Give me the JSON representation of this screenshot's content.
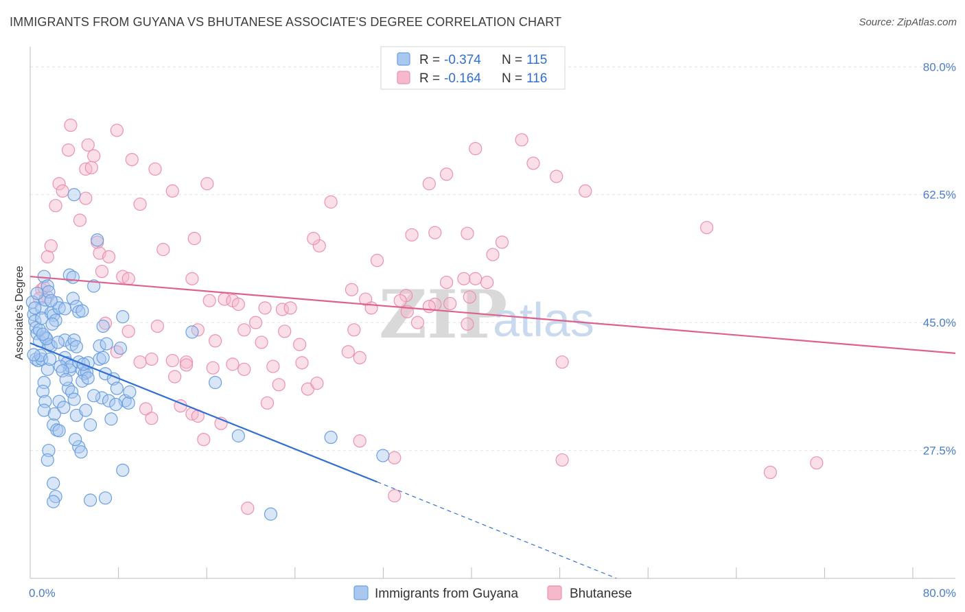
{
  "title": "IMMIGRANTS FROM GUYANA VS BHUTANESE ASSOCIATE'S DEGREE CORRELATION CHART",
  "source": "Source: ZipAtlas.com",
  "watermark": {
    "zip": "ZIP",
    "atlas": "atlas"
  },
  "colors": {
    "blue_fill": "#a8c8f0",
    "blue_stroke": "#6a9fe0",
    "blue_line": "#2f6fd1",
    "pink_fill": "#f6b8cb",
    "pink_stroke": "#ec90ae",
    "pink_line": "#e0608c",
    "grid": "#e3e3e3",
    "axis": "#bbbbbb",
    "tick_text": "#4a7cc7"
  },
  "legend": {
    "items": [
      {
        "r_label": "R =",
        "r_value": "-0.374",
        "n_label": "N =",
        "n_value": "115"
      },
      {
        "r_label": "R =",
        "r_value": "-0.164",
        "n_label": "N =",
        "n_value": "116"
      }
    ]
  },
  "chart_data": {
    "type": "scatter",
    "ylabel": "Associate's Degree",
    "x_tick_labels": [
      "0.0%",
      "80.0%"
    ],
    "y_tick_labels": [
      "27.5%",
      "45.0%",
      "62.5%",
      "80.0%"
    ],
    "y_ticks": [
      27.5,
      45.0,
      62.5,
      80.0
    ],
    "xlim": [
      0,
      80
    ],
    "ylim": [
      10,
      82
    ],
    "grid": true,
    "legend_position": "top-center",
    "series": [
      {
        "name": "Immigrants from Guyana",
        "color": "blue",
        "trend": {
          "x0": 0,
          "y0": 42.2,
          "x1": 30,
          "y1": 23.2,
          "dash_to_x": 50.7,
          "dash_to_y": 10
        },
        "points": [
          [
            0.2,
            47.8
          ],
          [
            0.3,
            46.1
          ],
          [
            0.4,
            45.2
          ],
          [
            0.5,
            44.3
          ],
          [
            0.6,
            43.5
          ],
          [
            0.5,
            40.0
          ],
          [
            0.7,
            39.8
          ],
          [
            0.8,
            42.5
          ],
          [
            1.0,
            47.0
          ],
          [
            1.0,
            40.0
          ],
          [
            1.2,
            51.3
          ],
          [
            1.3,
            48.1
          ],
          [
            1.5,
            50.0
          ],
          [
            1.6,
            49.2
          ],
          [
            1.3,
            43.0
          ],
          [
            1.6,
            42.0
          ],
          [
            1.8,
            41.8
          ],
          [
            1.8,
            46.3
          ],
          [
            2.0,
            46.0
          ],
          [
            2.2,
            45.3
          ],
          [
            2.3,
            47.7
          ],
          [
            2.5,
            47.0
          ],
          [
            1.2,
            36.8
          ],
          [
            1.1,
            35.6
          ],
          [
            1.3,
            34.2
          ],
          [
            1.2,
            33.0
          ],
          [
            1.5,
            38.6
          ],
          [
            2.0,
            31.0
          ],
          [
            2.3,
            30.3
          ],
          [
            2.1,
            32.5
          ],
          [
            2.5,
            34.2
          ],
          [
            3.0,
            42.6
          ],
          [
            3.0,
            40.2
          ],
          [
            3.2,
            39.5
          ],
          [
            3.4,
            38.5
          ],
          [
            3.5,
            39.0
          ],
          [
            3.6,
            42.0
          ],
          [
            3.8,
            42.6
          ],
          [
            4.0,
            41.7
          ],
          [
            3.3,
            36.0
          ],
          [
            3.6,
            35.5
          ],
          [
            3.8,
            34.5
          ],
          [
            4.0,
            32.3
          ],
          [
            4.2,
            39.6
          ],
          [
            4.5,
            38.5
          ],
          [
            4.7,
            38.0
          ],
          [
            4.9,
            38.2
          ],
          [
            4.5,
            37.0
          ],
          [
            5.0,
            37.4
          ],
          [
            3.7,
            48.3
          ],
          [
            4.0,
            47.2
          ],
          [
            4.2,
            46.5
          ],
          [
            4.5,
            46.6
          ],
          [
            3.4,
            51.5
          ],
          [
            3.7,
            51.2
          ],
          [
            5.5,
            50.0
          ],
          [
            5.8,
            56.3
          ],
          [
            3.8,
            62.5
          ],
          [
            4.2,
            28.0
          ],
          [
            4.4,
            27.3
          ],
          [
            2.5,
            30.2
          ],
          [
            1.6,
            27.5
          ],
          [
            1.5,
            26.2
          ],
          [
            2.0,
            23.0
          ],
          [
            2.2,
            21.2
          ],
          [
            2.0,
            20.5
          ],
          [
            5.2,
            20.7
          ],
          [
            6.5,
            21.0
          ],
          [
            8.0,
            24.8
          ],
          [
            6.0,
            40.0
          ],
          [
            6.5,
            38.0
          ],
          [
            6.2,
            34.7
          ],
          [
            6.8,
            34.3
          ],
          [
            7.0,
            31.8
          ],
          [
            7.2,
            37.3
          ],
          [
            7.5,
            36.0
          ],
          [
            7.8,
            41.5
          ],
          [
            8.0,
            45.8
          ],
          [
            8.2,
            34.3
          ],
          [
            8.5,
            34.0
          ],
          [
            8.6,
            35.5
          ],
          [
            6.3,
            40.2
          ],
          [
            6.0,
            41.8
          ],
          [
            6.3,
            44.5
          ],
          [
            5.2,
            31.0
          ],
          [
            4.8,
            33.0
          ],
          [
            5.5,
            35.0
          ],
          [
            14.0,
            43.7
          ],
          [
            16.0,
            36.8
          ],
          [
            18.0,
            29.5
          ],
          [
            26.0,
            29.3
          ],
          [
            30.5,
            26.8
          ],
          [
            20.8,
            18.8
          ],
          [
            0.8,
            44.0
          ],
          [
            1.0,
            45.6
          ],
          [
            0.9,
            40.5
          ],
          [
            1.4,
            42.8
          ],
          [
            1.7,
            40.0
          ],
          [
            2.6,
            39.0
          ],
          [
            2.8,
            38.4
          ],
          [
            0.6,
            49.0
          ],
          [
            0.3,
            40.6
          ],
          [
            1.9,
            44.8
          ],
          [
            1.1,
            43.4
          ],
          [
            3.1,
            37.2
          ],
          [
            5.0,
            39.5
          ],
          [
            2.9,
            33.4
          ],
          [
            3.9,
            29.0
          ],
          [
            6.6,
            42.1
          ],
          [
            7.4,
            33.8
          ],
          [
            2.4,
            42.3
          ],
          [
            0.4,
            47.0
          ],
          [
            1.8,
            48.0
          ],
          [
            4.6,
            39.3
          ],
          [
            3.0,
            46.9
          ]
        ]
      },
      {
        "name": "Bhutanese",
        "color": "pink",
        "trend": {
          "x0": 0,
          "y0": 51.3,
          "x1": 80,
          "y1": 40.8
        },
        "points": [
          [
            3.5,
            72.0
          ],
          [
            7.5,
            71.3
          ],
          [
            5.0,
            69.3
          ],
          [
            3.3,
            68.6
          ],
          [
            5.5,
            67.8
          ],
          [
            8.8,
            67.3
          ],
          [
            4.8,
            66.0
          ],
          [
            5.3,
            66.2
          ],
          [
            10.8,
            66.0
          ],
          [
            2.5,
            64.0
          ],
          [
            2.8,
            63.0
          ],
          [
            4.8,
            62.0
          ],
          [
            2.2,
            61.0
          ],
          [
            9.5,
            61.2
          ],
          [
            12.3,
            63.0
          ],
          [
            15.3,
            64.0
          ],
          [
            26.0,
            61.5
          ],
          [
            4.3,
            59.0
          ],
          [
            1.5,
            54.0
          ],
          [
            1.8,
            55.5
          ],
          [
            5.8,
            56.0
          ],
          [
            6.0,
            54.5
          ],
          [
            6.8,
            54.0
          ],
          [
            11.5,
            55.0
          ],
          [
            14.2,
            56.5
          ],
          [
            25.0,
            55.5
          ],
          [
            24.5,
            56.5
          ],
          [
            6.2,
            52.0
          ],
          [
            8.0,
            51.3
          ],
          [
            8.5,
            51.0
          ],
          [
            14.0,
            51.0
          ],
          [
            1.0,
            49.5
          ],
          [
            1.5,
            48.5
          ],
          [
            0.8,
            48.3
          ],
          [
            1.2,
            49.8
          ],
          [
            15.5,
            48.0
          ],
          [
            16.8,
            48.2
          ],
          [
            17.5,
            48.0
          ],
          [
            18.0,
            47.5
          ],
          [
            20.3,
            47.0
          ],
          [
            21.8,
            46.8
          ],
          [
            22.5,
            47.0
          ],
          [
            27.8,
            49.5
          ],
          [
            29.0,
            48.2
          ],
          [
            29.5,
            47.0
          ],
          [
            30.0,
            53.5
          ],
          [
            32.5,
            48.7
          ],
          [
            32.0,
            48.0
          ],
          [
            32.6,
            46.5
          ],
          [
            35.0,
            47.5
          ],
          [
            36.0,
            50.5
          ],
          [
            37.5,
            51.0
          ],
          [
            38.5,
            51.0
          ],
          [
            39.5,
            50.5
          ],
          [
            38.0,
            48.5
          ],
          [
            34.5,
            47.2
          ],
          [
            19.5,
            45.0
          ],
          [
            20.0,
            42.3
          ],
          [
            18.5,
            44.0
          ],
          [
            22.0,
            43.8
          ],
          [
            23.3,
            42.0
          ],
          [
            16.0,
            42.5
          ],
          [
            11.0,
            44.5
          ],
          [
            14.5,
            44.0
          ],
          [
            6.5,
            44.9
          ],
          [
            8.5,
            43.8
          ],
          [
            28.0,
            44.0
          ],
          [
            27.5,
            41.0
          ],
          [
            28.5,
            40.2
          ],
          [
            33.5,
            45.0
          ],
          [
            37.8,
            44.8
          ],
          [
            36.3,
            47.6
          ],
          [
            7.5,
            41.0
          ],
          [
            9.5,
            39.6
          ],
          [
            10.5,
            40.0
          ],
          [
            12.3,
            39.8
          ],
          [
            13.5,
            39.6
          ],
          [
            13.5,
            39.2
          ],
          [
            12.5,
            37.6
          ],
          [
            15.8,
            38.8
          ],
          [
            17.5,
            39.3
          ],
          [
            18.5,
            38.6
          ],
          [
            21.5,
            36.5
          ],
          [
            21.0,
            39.0
          ],
          [
            23.5,
            39.5
          ],
          [
            24.0,
            35.9
          ],
          [
            24.8,
            36.7
          ],
          [
            20.5,
            34.0
          ],
          [
            10.0,
            33.2
          ],
          [
            10.5,
            31.9
          ],
          [
            13.0,
            33.6
          ],
          [
            14.0,
            32.5
          ],
          [
            14.5,
            32.2
          ],
          [
            16.5,
            31.2
          ],
          [
            15.0,
            29.0
          ],
          [
            28.5,
            28.8
          ],
          [
            31.5,
            26.5
          ],
          [
            33.0,
            57.0
          ],
          [
            35.0,
            57.3
          ],
          [
            34.5,
            64.0
          ],
          [
            36.0,
            65.3
          ],
          [
            37.8,
            57.2
          ],
          [
            38.5,
            68.8
          ],
          [
            40.0,
            54.3
          ],
          [
            40.8,
            56.0
          ],
          [
            42.5,
            70.0
          ],
          [
            43.5,
            66.8
          ],
          [
            45.5,
            65.0
          ],
          [
            48.0,
            63.0
          ],
          [
            46.0,
            39.6
          ],
          [
            46.0,
            26.2
          ],
          [
            58.5,
            58.0
          ],
          [
            64.0,
            24.5
          ],
          [
            68.0,
            25.8
          ],
          [
            31.5,
            21.3
          ],
          [
            18.8,
            19.6
          ]
        ]
      }
    ]
  },
  "bottom_legend": [
    {
      "label": "Immigrants from Guyana"
    },
    {
      "label": "Bhutanese"
    }
  ]
}
